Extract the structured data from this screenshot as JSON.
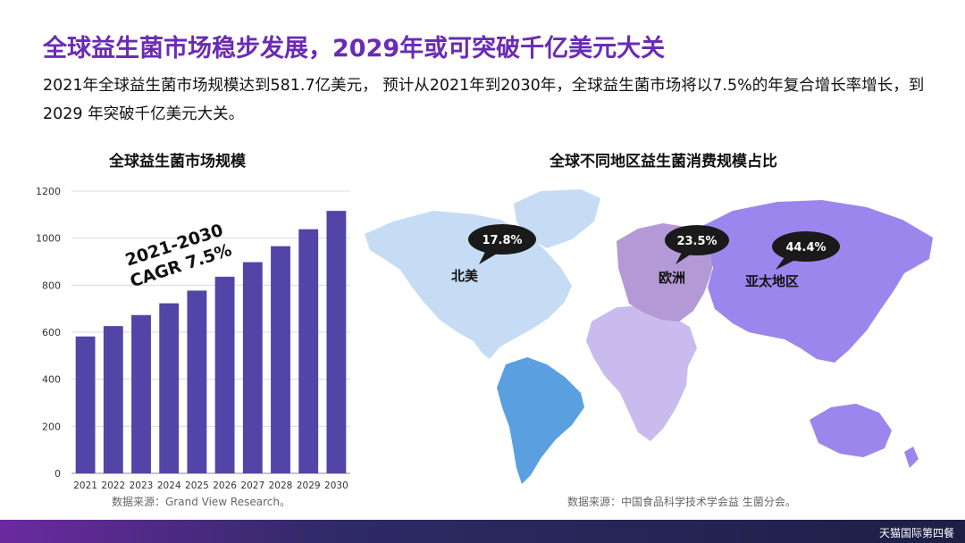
{
  "header": {
    "title": "全球益生菌市场稳步发展，2029年或可突破千亿美元大关",
    "subtitle": "2021年全球益生菌市场规模达到581.7亿美元， 预计从2021年到2030年，全球益生菌市场将以7.5%的年复合增长率增长，到 2029 年突破千亿美元大关。"
  },
  "bar_chart": {
    "title": "全球益生菌市场规模",
    "annotation_line1": "2021-2030",
    "annotation_line2": "CAGR 7.5%",
    "source": "数据来源：Grand View Research。"
  },
  "map_chart": {
    "title": "全球不同地区益生菌消费规模占比",
    "source": "数据来源：中国食品科学技术学会益 生菌分会。",
    "regions": [
      {
        "name": "北美",
        "share_label": "17.8%"
      },
      {
        "name": "欧洲",
        "share_label": "23.5%"
      },
      {
        "name": "亚太地区",
        "share_label": "44.4%"
      }
    ]
  },
  "footer": {
    "logo_text": "天猫国际第四餐"
  },
  "colors": {
    "title": "#6a2bb5",
    "bar": "#5344a8",
    "north_america": "#c6dcf4",
    "south_america": "#5aa0e0",
    "europe": "#b39ad6",
    "asia_pacific": "#9b86ee",
    "africa": "#c9bbee",
    "oceania": "#9b86ee",
    "bubble": "#1a1a1a"
  },
  "chart_data": [
    {
      "type": "bar",
      "title": "全球益生菌市场规模",
      "categories": [
        "2021",
        "2022",
        "2023",
        "2024",
        "2025",
        "2026",
        "2027",
        "2028",
        "2029",
        "2030"
      ],
      "values": [
        582,
        626,
        673,
        723,
        777,
        836,
        898,
        966,
        1038,
        1116
      ],
      "ylim": [
        0,
        1200
      ],
      "yticks": [
        0,
        200,
        400,
        600,
        800,
        1000,
        1200
      ],
      "grid": true,
      "xlabel": "",
      "ylabel": ""
    },
    {
      "type": "pie",
      "title": "全球不同地区益生菌消费规模占比",
      "categories": [
        "北美",
        "欧洲",
        "亚太地区"
      ],
      "values": [
        17.8,
        23.5,
        44.4
      ]
    }
  ]
}
